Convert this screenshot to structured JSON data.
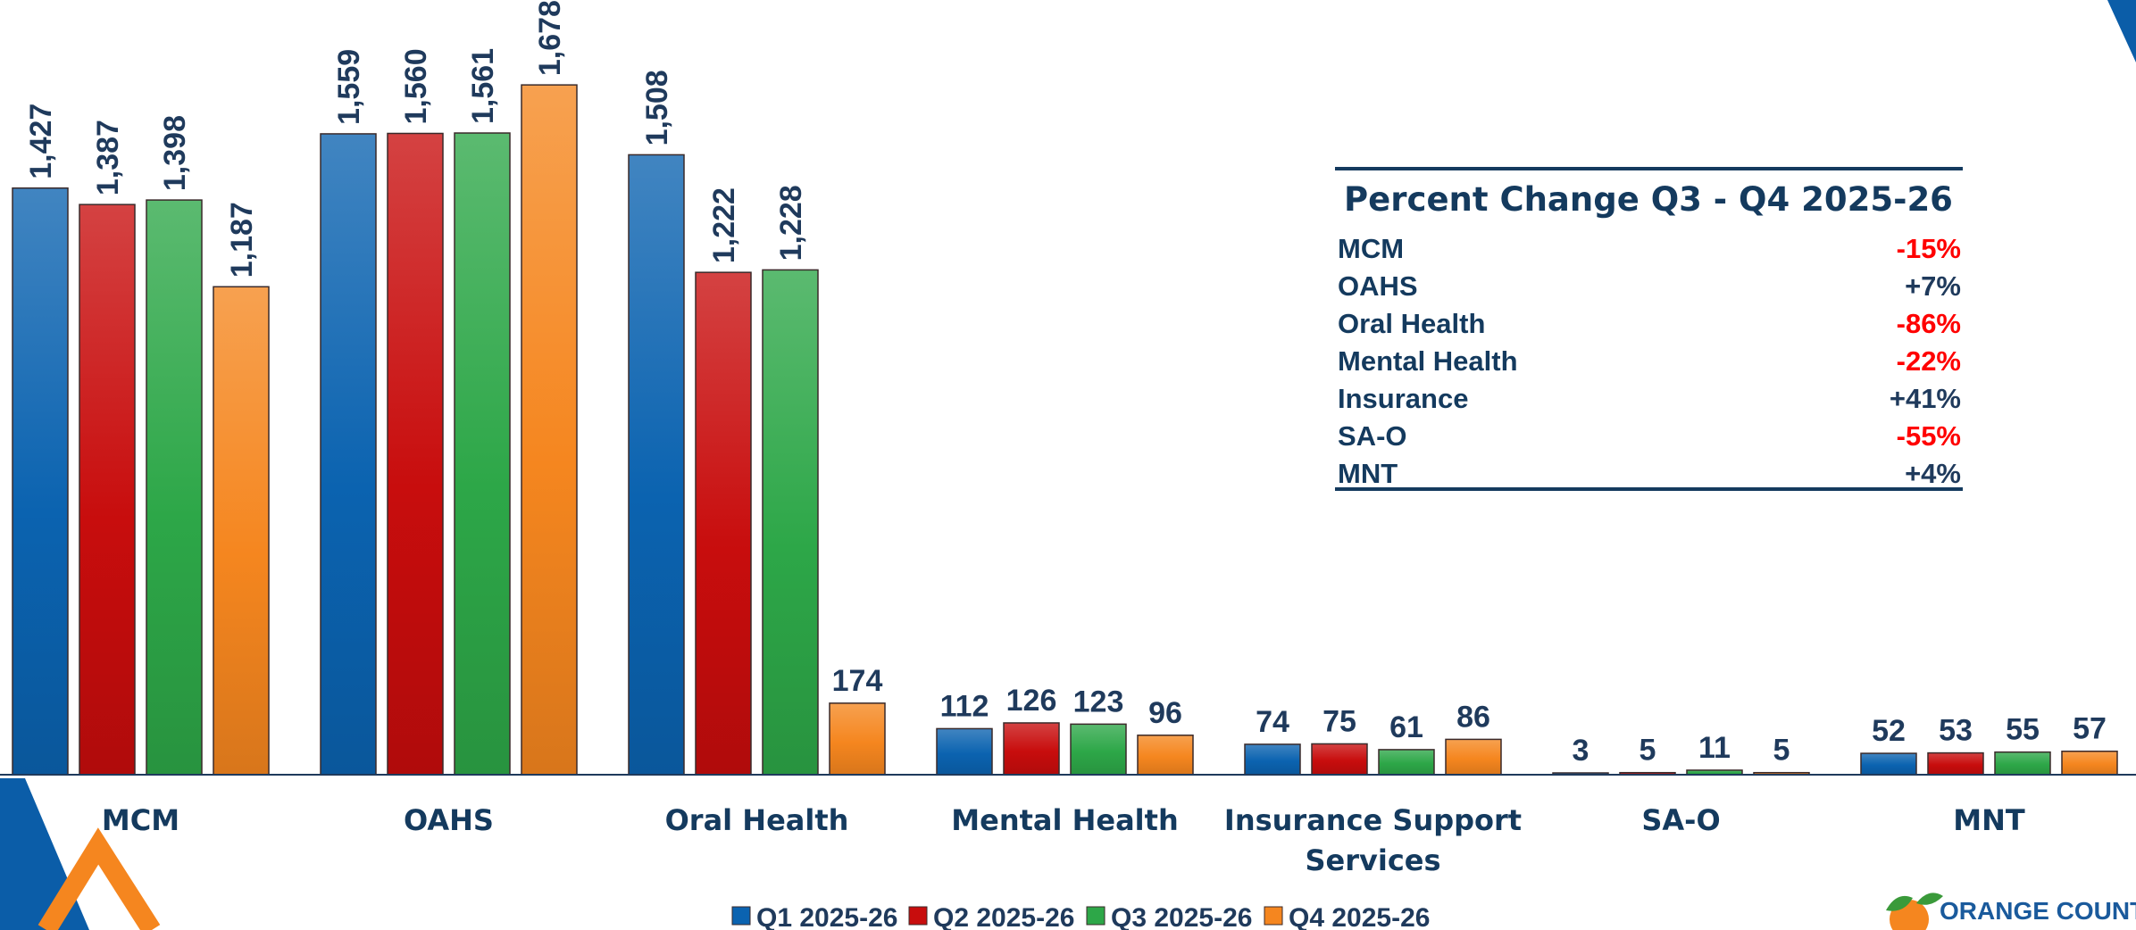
{
  "chart_data": {
    "type": "bar",
    "categories": [
      "MCM",
      "OAHS",
      "Oral Health",
      "Mental Health",
      "Insurance Support Services",
      "SA-O",
      "MNT"
    ],
    "series": [
      {
        "name": "Q1 2025-26",
        "values": [
          1427,
          1559,
          1508,
          112,
          74,
          3,
          52
        ],
        "labels": [
          "1,427",
          "1,559",
          "1,508",
          "112",
          "74",
          "3",
          "52"
        ]
      },
      {
        "name": "Q2 2025-26",
        "values": [
          1387,
          1560,
          1222,
          126,
          75,
          5,
          53
        ],
        "labels": [
          "1,387",
          "1,560",
          "1,222",
          "126",
          "75",
          "5",
          "53"
        ]
      },
      {
        "name": "Q3 2025-26",
        "values": [
          1398,
          1561,
          1228,
          123,
          61,
          11,
          55
        ],
        "labels": [
          "1,398",
          "1,561",
          "1,228",
          "123",
          "61",
          "11",
          "55"
        ]
      },
      {
        "name": "Q4 2025-26",
        "values": [
          1187,
          1678,
          174,
          96,
          86,
          5,
          57
        ],
        "labels": [
          "1,187",
          "1,678",
          "174",
          "96",
          "86",
          "5",
          "57"
        ]
      }
    ],
    "series_colors": [
      "#0b63b0",
      "#c80d0d",
      "#2da748",
      "#f5861f"
    ],
    "ylim": [
      0,
      1700
    ],
    "grid": false,
    "legend_position": "bottom",
    "percent_change_table": {
      "title": "Percent Change Q3 - Q4 2025-26",
      "rows": [
        {
          "label": "MCM",
          "value": "-15%",
          "negative": true
        },
        {
          "label": "OAHS",
          "value": "+7%",
          "negative": false
        },
        {
          "label": "Oral Health",
          "value": "-86%",
          "negative": true
        },
        {
          "label": "Mental Health",
          "value": "-22%",
          "negative": true
        },
        {
          "label": "Insurance",
          "value": "+41%",
          "negative": false
        },
        {
          "label": "SA-O",
          "value": "-55%",
          "negative": true
        },
        {
          "label": "MNT",
          "value": "+4%",
          "negative": false
        }
      ]
    }
  },
  "logo": {
    "text": "ORANGE COUNT"
  },
  "colors": {
    "navy": "#143a5e",
    "negative": "#ff0000",
    "positive": "#1f3a5c"
  }
}
